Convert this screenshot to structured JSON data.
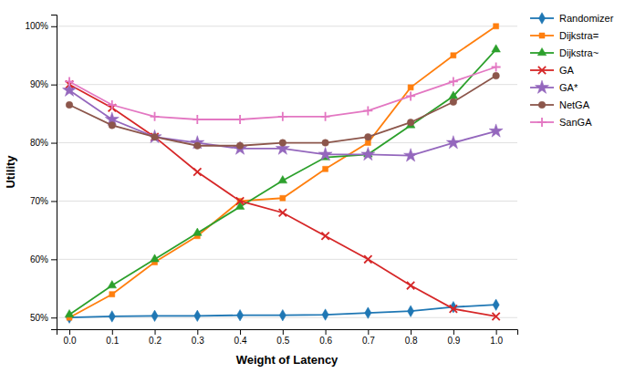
{
  "chart_data": {
    "type": "line",
    "xlabel": "Weight of Latency",
    "ylabel": "Utility",
    "x": [
      0.0,
      0.1,
      0.2,
      0.3,
      0.4,
      0.5,
      0.6,
      0.7,
      0.8,
      0.9,
      1.0
    ],
    "series": [
      {
        "name": "Randomizer",
        "marker": "diamond",
        "values": [
          0.5,
          0.502,
          0.503,
          0.503,
          0.504,
          0.504,
          0.505,
          0.508,
          0.511,
          0.518,
          0.522
        ]
      },
      {
        "name": "Dijkstra=",
        "marker": "square",
        "values": [
          0.5,
          0.54,
          0.595,
          0.64,
          0.7,
          0.705,
          0.755,
          0.8,
          0.895,
          0.95,
          1.0
        ]
      },
      {
        "name": "Dijkstra~",
        "marker": "triangle",
        "values": [
          0.505,
          0.555,
          0.6,
          0.645,
          0.69,
          0.735,
          0.775,
          0.78,
          0.83,
          0.88,
          0.96
        ]
      },
      {
        "name": "GA",
        "marker": "x",
        "values": [
          0.9,
          0.86,
          0.81,
          0.75,
          0.7,
          0.68,
          0.64,
          0.6,
          0.555,
          0.515,
          0.502
        ]
      },
      {
        "name": "GA*",
        "marker": "star",
        "values": [
          0.89,
          0.84,
          0.81,
          0.8,
          0.79,
          0.79,
          0.78,
          0.78,
          0.778,
          0.8,
          0.82
        ]
      },
      {
        "name": "NetGA",
        "marker": "circle",
        "values": [
          0.865,
          0.83,
          0.81,
          0.795,
          0.795,
          0.8,
          0.8,
          0.81,
          0.835,
          0.87,
          0.915
        ]
      },
      {
        "name": "SanGA",
        "marker": "plus",
        "values": [
          0.905,
          0.865,
          0.845,
          0.84,
          0.84,
          0.845,
          0.845,
          0.855,
          0.88,
          0.905,
          0.93
        ]
      }
    ],
    "xlim": [
      -0.03,
      1.05
    ],
    "xticks": [
      {
        "value": 0.0,
        "label": "0.0"
      },
      0.1,
      0.2,
      0.3,
      0.4,
      0.5,
      0.6,
      0.7,
      0.8,
      0.9,
      {
        "value": 1.0,
        "label": "1.0"
      }
    ],
    "ylim": [
      0.48,
      1.02
    ],
    "yticks": [
      {
        "value": 0.5,
        "label": "50%"
      },
      {
        "value": 0.6,
        "label": "60%"
      },
      {
        "value": 0.7,
        "label": "70%"
      },
      {
        "value": 0.8,
        "label": "80%"
      },
      {
        "value": 0.9,
        "label": "90%"
      },
      {
        "value": 1.0,
        "label": "100%"
      }
    ],
    "grid": true,
    "legend": "right"
  }
}
